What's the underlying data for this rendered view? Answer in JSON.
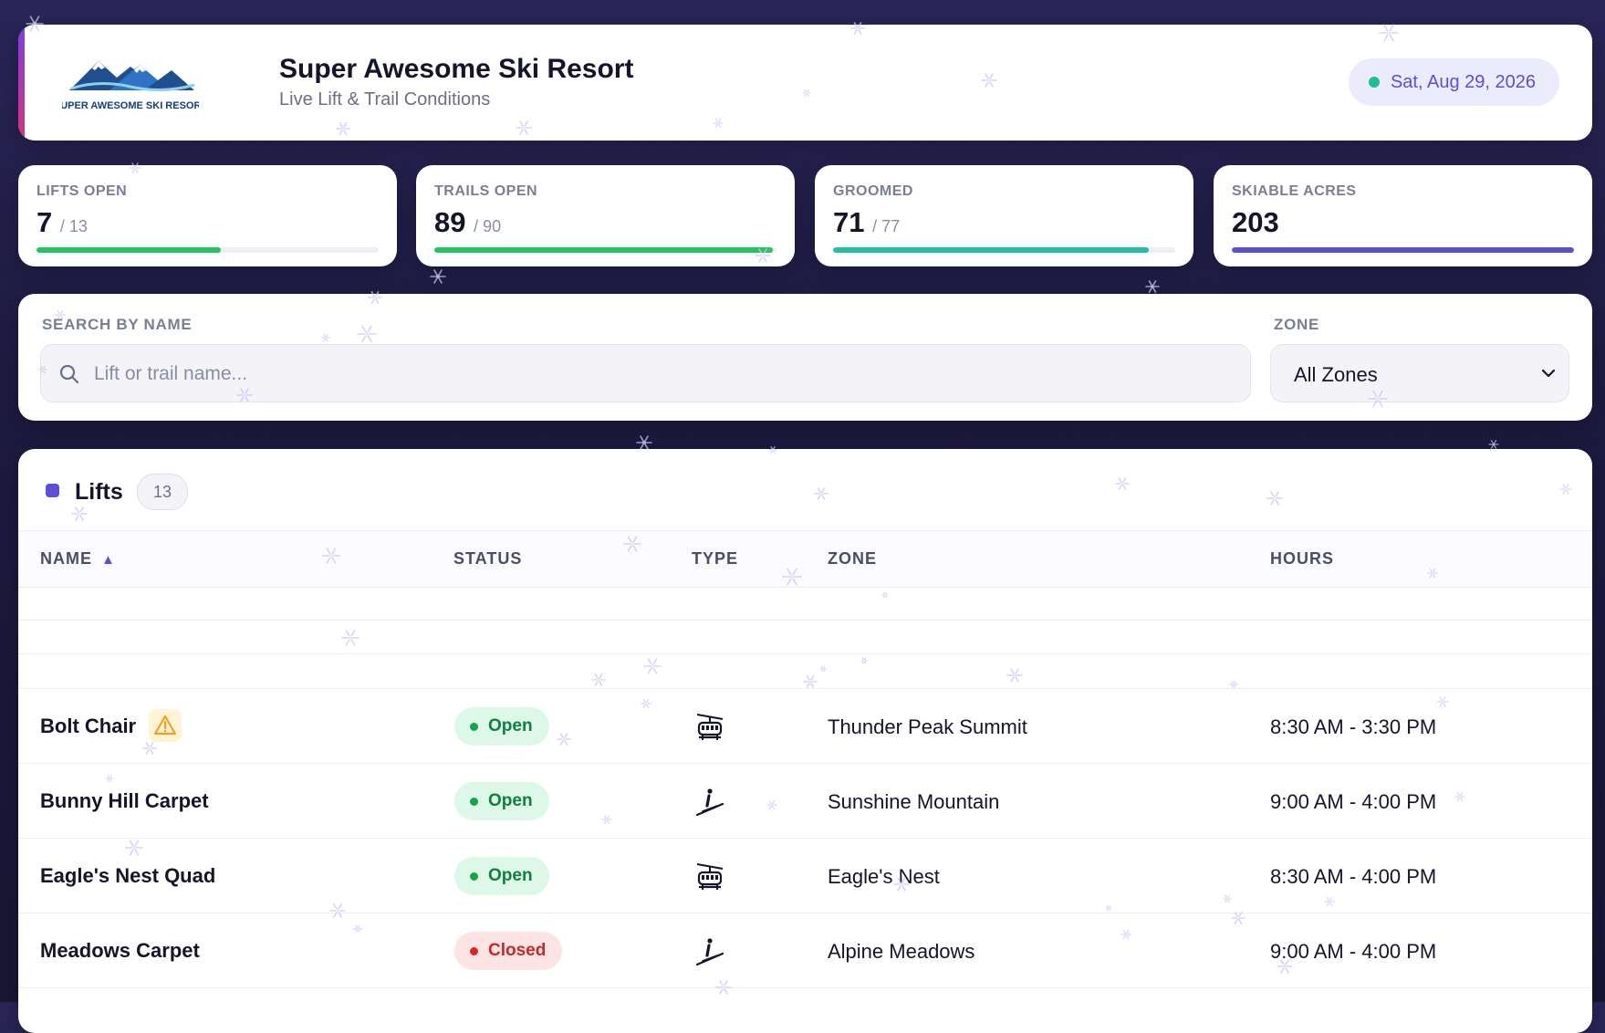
{
  "header": {
    "logo_text": "SUPER AWESOME SKI RESORT",
    "title": "Super Awesome Ski Resort",
    "subtitle": "Live Lift & Trail Conditions",
    "date": "Sat, Aug 29, 2026",
    "status_color": "#1fbf8f"
  },
  "stats": [
    {
      "label": "LIFTS OPEN",
      "value": "7",
      "total": "/ 13",
      "fill_fraction": 0.538,
      "color": "#22c55e"
    },
    {
      "label": "TRAILS OPEN",
      "value": "89",
      "total": "/ 90",
      "fill_fraction": 0.989,
      "color": "#22c55e"
    },
    {
      "label": "GROOMED",
      "value": "71",
      "total": "/ 77",
      "fill_fraction": 0.922,
      "color": "#20c0a0"
    },
    {
      "label": "SKIABLE ACRES",
      "value": "203",
      "total": "",
      "fill_fraction": 1.0,
      "color": "#5b4fd6"
    }
  ],
  "filters": {
    "search_label": "SEARCH BY NAME",
    "search_placeholder": "Lift or trail name...",
    "zone_label": "ZONE",
    "zone_selected": "All Zones"
  },
  "lifts": {
    "title": "Lifts",
    "count": "13",
    "columns": [
      "NAME",
      "STATUS",
      "TYPE",
      "ZONE",
      "HOURS"
    ],
    "sort_indicator": "▲",
    "rows": [
      {
        "name": "Bolt Chair",
        "warning": true,
        "status": "Open",
        "type_icon": "chairlift-icon",
        "zone": "Thunder Peak Summit",
        "hours": "8:30 AM - 3:30 PM"
      },
      {
        "name": "Bunny Hill Carpet",
        "warning": false,
        "status": "Open",
        "type_icon": "magic-carpet-icon",
        "zone": "Sunshine Mountain",
        "hours": "9:00 AM - 4:00 PM"
      },
      {
        "name": "Eagle's Nest Quad",
        "warning": false,
        "status": "Open",
        "type_icon": "chairlift-icon",
        "zone": "Eagle's Nest",
        "hours": "8:30 AM - 4:00 PM"
      },
      {
        "name": "Meadows Carpet",
        "warning": false,
        "status": "Closed",
        "type_icon": "magic-carpet-icon",
        "zone": "Alpine Meadows",
        "hours": "9:00 AM - 4:00 PM"
      }
    ]
  },
  "colors": {
    "accent": "#5b4fd6",
    "open": "#16a34a",
    "closed": "#dc2626",
    "warning": "#f0a020"
  }
}
